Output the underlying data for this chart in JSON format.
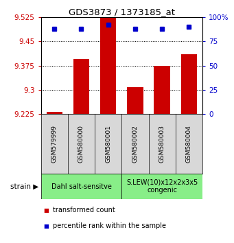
{
  "title": "GDS3873 / 1373185_at",
  "samples": [
    "GSM579999",
    "GSM580000",
    "GSM580001",
    "GSM580002",
    "GSM580003",
    "GSM580004"
  ],
  "transformed_counts": [
    9.232,
    9.395,
    9.525,
    9.308,
    9.375,
    9.41
  ],
  "percentile_ranks": [
    88,
    88,
    92,
    88,
    88,
    90
  ],
  "ymin": 9.225,
  "ymax": 9.525,
  "yticks": [
    9.225,
    9.3,
    9.375,
    9.45,
    9.525
  ],
  "ytick_labels": [
    "9.225",
    "9.3",
    "9.375",
    "9.45",
    "9.525"
  ],
  "y2min": 0,
  "y2max": 100,
  "y2ticks": [
    0,
    25,
    50,
    75,
    100
  ],
  "y2tick_labels": [
    "0",
    "25",
    "50",
    "75",
    "100%"
  ],
  "bar_color": "#cc0000",
  "dot_color": "#0000cc",
  "groups": [
    {
      "label": "Dahl salt-sensitve",
      "samples": [
        0,
        1,
        2
      ],
      "color": "#88ee88"
    },
    {
      "label": "S.LEW(10)x12x2x3x5\ncongenic",
      "samples": [
        3,
        4,
        5
      ],
      "color": "#88ee88"
    }
  ],
  "ylabel_left_color": "#cc0000",
  "ylabel_right_color": "#0000cc",
  "grid_yticks": [
    9.3,
    9.375,
    9.45
  ],
  "legend_items": [
    {
      "color": "#cc0000",
      "marker": "s",
      "label": "transformed count"
    },
    {
      "color": "#0000cc",
      "marker": "s",
      "label": "percentile rank within the sample"
    }
  ],
  "sample_bg_color": "#d8d8d8",
  "strain_label": "strain"
}
